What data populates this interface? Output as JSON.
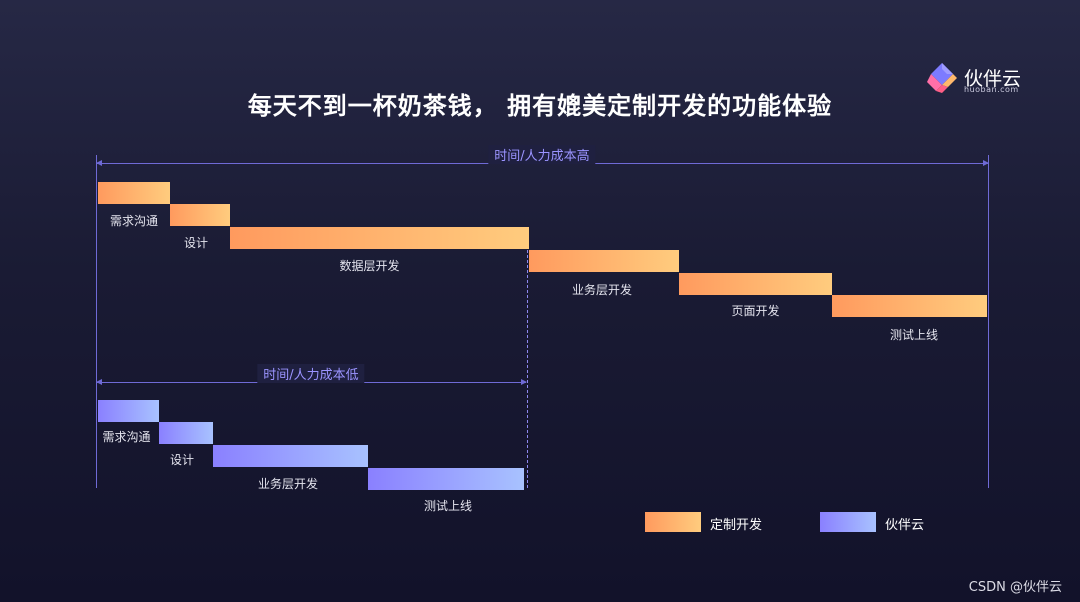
{
  "title": "每天不到一杯奶茶钱， 拥有媲美定制开发的功能体验",
  "logo": {
    "name": "伙伴云",
    "domain": "huoban.com"
  },
  "custom_dev": {
    "range_label": "时间/人力成本高",
    "color_start": "#ff9a5e",
    "color_end": "#ffcc7e",
    "tasks": [
      {
        "label": "需求沟通"
      },
      {
        "label": "设计"
      },
      {
        "label": "数据层开发"
      },
      {
        "label": "业务层开发"
      },
      {
        "label": "页面开发"
      },
      {
        "label": "测试上线"
      }
    ]
  },
  "huoban": {
    "range_label": "时间/人力成本低",
    "color_start": "#8a80ff",
    "color_end": "#a8c2ff",
    "tasks": [
      {
        "label": "需求沟通"
      },
      {
        "label": "设计"
      },
      {
        "label": "业务层开发"
      },
      {
        "label": "测试上线"
      }
    ]
  },
  "legend": [
    {
      "label": "定制开发",
      "color": "#ff9a5e"
    },
    {
      "label": "伙伴云",
      "color": "#8a80ff"
    }
  ],
  "watermark": "CSDN @伙伴云",
  "accent_color": "#6f6ad6"
}
